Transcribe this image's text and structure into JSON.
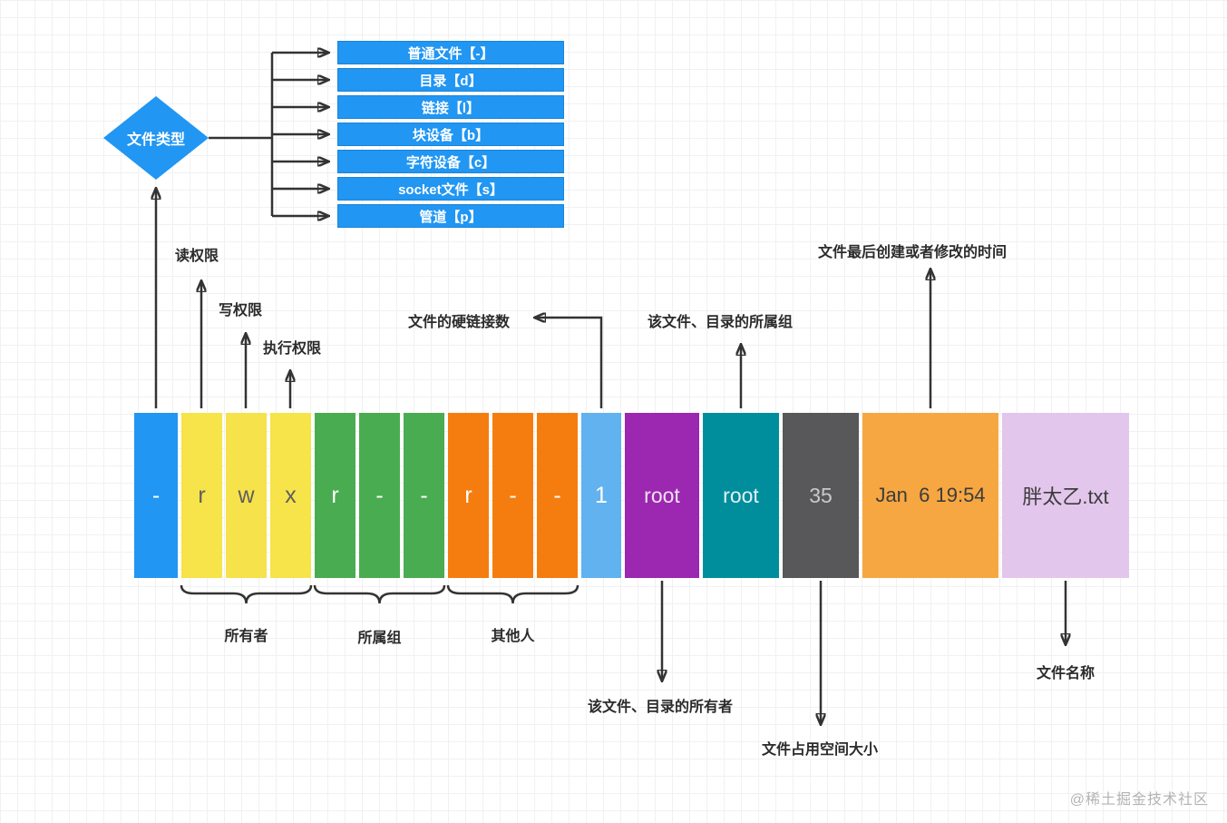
{
  "diamond_label": "文件类型",
  "file_type_boxes": [
    "普通文件【-】",
    "目录【d】",
    "链接【l】",
    "块设备【b】",
    "字符设备【c】",
    "socket文件【s】",
    "管道【p】"
  ],
  "labels": {
    "read_permission": "读权限",
    "write_permission": "写权限",
    "execute_permission": "执行权限",
    "hard_link_count": "文件的硬链接数",
    "owning_group": "该文件、目录的所属组",
    "modify_time": "文件最后创建或者修改的时间",
    "owner_brace": "所有者",
    "group_brace": "所属组",
    "others_brace": "其他人",
    "file_owner": "该文件、目录的所有者",
    "file_size": "文件占用空间大小",
    "file_name": "文件名称"
  },
  "ls_row": {
    "cells": [
      {
        "name": "filetype",
        "text": "-",
        "bg": "#2196f3",
        "fg": "#ffffff"
      },
      {
        "name": "owner-r",
        "text": "r",
        "bg": "#f6e44a",
        "fg": "#5f5f5f"
      },
      {
        "name": "owner-w",
        "text": "w",
        "bg": "#f6e24b",
        "fg": "#5f5f5f"
      },
      {
        "name": "owner-x",
        "text": "x",
        "bg": "#f6e44a",
        "fg": "#5f5f5f"
      },
      {
        "name": "group-r",
        "text": "r",
        "bg": "#4aac50",
        "fg": "#ffffff"
      },
      {
        "name": "group-w",
        "text": "-",
        "bg": "#4aac50",
        "fg": "#ffffff"
      },
      {
        "name": "group-x",
        "text": "-",
        "bg": "#4aac50",
        "fg": "#ffffff"
      },
      {
        "name": "others-r",
        "text": "r",
        "bg": "#f57d10",
        "fg": "#ffffff"
      },
      {
        "name": "others-w",
        "text": "-",
        "bg": "#f57d10",
        "fg": "#ffffff"
      },
      {
        "name": "others-x",
        "text": "-",
        "bg": "#f57d10",
        "fg": "#ffffff"
      },
      {
        "name": "links",
        "text": "1",
        "bg": "#62b2f0",
        "fg": "#ffffff"
      },
      {
        "name": "owner",
        "text": "root",
        "bg": "#9c27b0",
        "fg": "#efe3f2"
      },
      {
        "name": "group",
        "text": "root",
        "bg": "#008e9c",
        "fg": "#e2f2f4"
      },
      {
        "name": "size",
        "text": "35",
        "bg": "#58585a",
        "fg": "#c9c9c9"
      },
      {
        "name": "mtime",
        "text": "Jan  6 19:54",
        "bg": "#f6a742",
        "fg": "#3c3c3c"
      },
      {
        "name": "filename",
        "text": "胖太乙.txt",
        "bg": "#e3c6ec",
        "fg": "#3c3c3c"
      }
    ]
  },
  "watermark": "@稀土掘金技术社区"
}
